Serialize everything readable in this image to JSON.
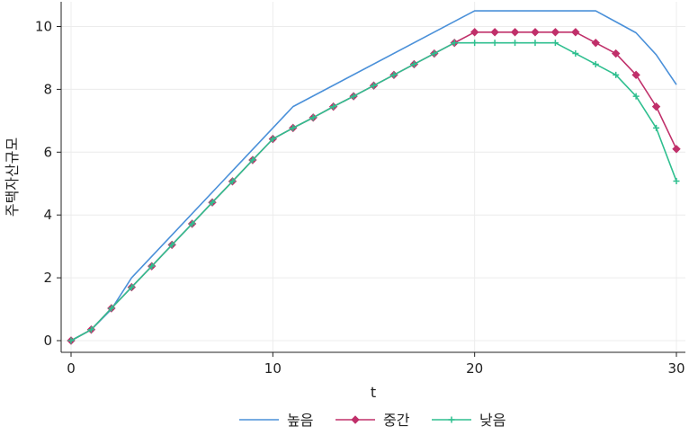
{
  "chart_data": {
    "type": "line",
    "title": "",
    "xlabel": "t",
    "ylabel": "주택자산규모",
    "xlim": [
      0,
      30
    ],
    "ylim": [
      0,
      10.5
    ],
    "xticks": [
      0,
      10,
      20,
      30
    ],
    "yticks": [
      0,
      2,
      4,
      6,
      8,
      10
    ],
    "grid": true,
    "legend_position": "bottom",
    "series": [
      {
        "name": "높음",
        "color": "#4a90d9",
        "marker": "none",
        "x": [
          0,
          1,
          2,
          3,
          11,
          20,
          21,
          22,
          23,
          24,
          25,
          26,
          27,
          28,
          29,
          30
        ],
        "y": [
          0,
          0.35,
          1.0,
          2.0,
          7.45,
          10.5,
          10.5,
          10.5,
          10.5,
          10.5,
          10.5,
          10.5,
          10.15,
          9.8,
          9.1,
          8.15
        ]
      },
      {
        "name": "중간",
        "color": "#c0306a",
        "marker": "diamond",
        "x": [
          0,
          1,
          2,
          3,
          4,
          5,
          6,
          7,
          8,
          9,
          10,
          11,
          12,
          13,
          14,
          15,
          16,
          17,
          18,
          19,
          20,
          21,
          22,
          23,
          24,
          25,
          26,
          27,
          28,
          29,
          30
        ],
        "y": [
          0,
          0.35,
          1.03,
          1.7,
          2.37,
          3.05,
          3.72,
          4.4,
          5.07,
          5.75,
          6.42,
          6.77,
          7.1,
          7.45,
          7.78,
          8.12,
          8.46,
          8.8,
          9.14,
          9.48,
          9.82,
          9.82,
          9.82,
          9.82,
          9.82,
          9.82,
          9.48,
          9.14,
          8.46,
          7.45,
          6.1
        ]
      },
      {
        "name": "낮음",
        "color": "#2fbf8f",
        "marker": "plus",
        "x": [
          0,
          1,
          2,
          3,
          4,
          5,
          6,
          7,
          8,
          9,
          10,
          11,
          12,
          13,
          14,
          15,
          16,
          17,
          18,
          19,
          20,
          21,
          22,
          23,
          24,
          25,
          26,
          27,
          28,
          29,
          30
        ],
        "y": [
          0,
          0.35,
          1.03,
          1.7,
          2.37,
          3.05,
          3.72,
          4.4,
          5.07,
          5.75,
          6.42,
          6.77,
          7.1,
          7.45,
          7.78,
          8.12,
          8.46,
          8.8,
          9.14,
          9.48,
          9.48,
          9.48,
          9.48,
          9.48,
          9.48,
          9.14,
          8.8,
          8.46,
          7.78,
          6.77,
          5.08
        ]
      }
    ]
  }
}
